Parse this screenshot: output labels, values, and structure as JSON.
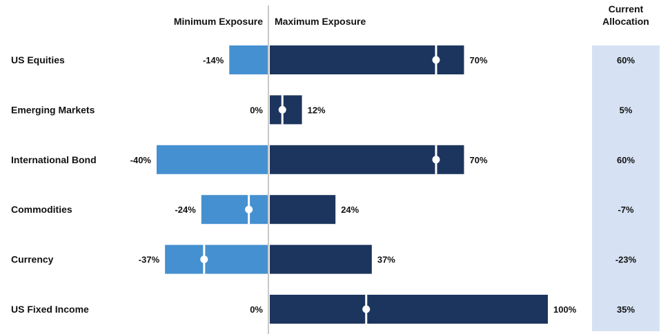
{
  "chart_data": {
    "type": "bar",
    "headers": {
      "min": "Minimum Exposure",
      "max": "Maximum Exposure",
      "current_line1": "Current",
      "current_line2": "Allocation"
    },
    "categories": [
      "US Equities",
      "Emerging Markets",
      "International Bond",
      "Commodities",
      "Currency",
      "US Fixed Income"
    ],
    "series": [
      {
        "name": "Minimum Exposure",
        "values": [
          -14,
          0,
          -40,
          -24,
          -37,
          0
        ]
      },
      {
        "name": "Maximum Exposure",
        "values": [
          70,
          12,
          70,
          24,
          37,
          100
        ]
      },
      {
        "name": "Current Allocation",
        "values": [
          60,
          5,
          60,
          -7,
          -23,
          35
        ]
      }
    ],
    "min_labels": [
      "-14%",
      "0%",
      "-40%",
      "-24%",
      "-37%",
      "0%"
    ],
    "max_labels": [
      "70%",
      "12%",
      "70%",
      "24%",
      "37%",
      "100%"
    ],
    "current_labels": [
      "60%",
      "5%",
      "60%",
      "-7%",
      "-23%",
      "35%"
    ],
    "xlim": [
      -40,
      100
    ],
    "colors": {
      "min_bar": "#4590D0",
      "max_bar": "#1C355E",
      "current_panel": "#D6E2F3",
      "axis_line": "#C8C8C8",
      "marker": "#FFFFFF"
    }
  }
}
